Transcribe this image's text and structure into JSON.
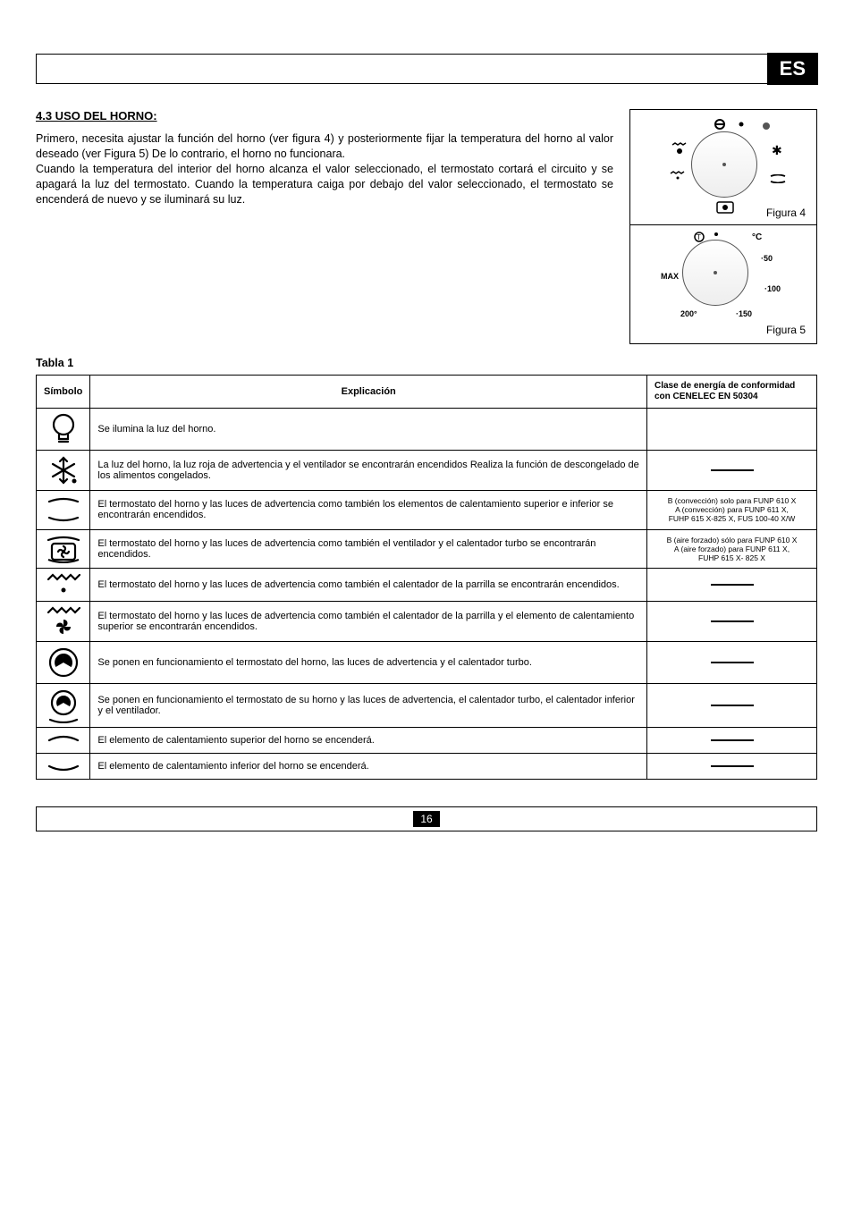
{
  "lang_badge": "ES",
  "section_title": "4.3 USO DEL HORNO:",
  "paragraph": "Primero, necesita ajustar la función del horno (ver figura 4) y posteriormente fijar la temperatura del horno al valor deseado (ver Figura 5) De lo contrario, el horno no funcionara.\nCuando la temperatura del interior del horno alcanza el valor seleccionado, el termostato cortará el circuito y se apagará la luz del termostato. Cuando la temperatura caiga por debajo del valor seleccionado, el termostato se encenderá de nuevo y se iluminará su luz.",
  "figure4_caption": "Figura  4",
  "figure5_caption": "Figura  5",
  "temp_labels": {
    "t": "°C",
    "r50": "·50",
    "r100": "·100",
    "r150": "·150",
    "l200": "200°",
    "lmax": "MAX"
  },
  "tabla_label": "Tabla 1",
  "headers": {
    "symbol": "Símbolo",
    "explanation": "Explicación",
    "class": "Clase de energía de conformidad con CENELEC EN 50304"
  },
  "rows": [
    {
      "icon": "lamp",
      "text": "Se ilumina la luz del horno.",
      "class": ""
    },
    {
      "icon": "defrost",
      "text": "La luz del horno, la luz roja de advertencia y el ventilador se encontrarán encendidos Realiza la función de descongelado de los alimentos congelados.",
      "class": "dash"
    },
    {
      "icon": "topbottom",
      "text": "El termostato del horno y las luces de advertencia como también los elementos de calentamiento superior e inferior se encontrarán encendidos.",
      "class": "B (convección) solo para FUNP 610 X\nA (convección) para FUNP 611 X,\nFUHP 615 X-825 X, FUS 100-40 X/W"
    },
    {
      "icon": "fanbox",
      "text": "El termostato del horno y las luces de advertencia como también el ventilador y el calentador turbo se encontrarán encendidos.",
      "class": "B (aire forzado) sólo para FUNP 610 X\nA (aire forzado) para FUNP 611 X,\nFUHP 615 X- 825 X"
    },
    {
      "icon": "grill",
      "text": "El termostato del horno y las luces de advertencia como también el calentador de la parrilla se encontrarán encendidos.",
      "class": "dash"
    },
    {
      "icon": "grillfan",
      "text": "El termostato del horno y las luces de advertencia como también el calentador de la parrilla y el elemento de calentamiento superior se encontrarán encendidos.",
      "class": "dash"
    },
    {
      "icon": "turbo",
      "text": "Se ponen en funcionamiento el termostato del horno, las luces de advertencia y el calentador turbo.",
      "class": "dash"
    },
    {
      "icon": "turbobottom",
      "text": "Se ponen en funcionamiento el termostato de su horno y las luces de advertencia, el calentador turbo, el calentador inferior y el ventilador.",
      "class": "dash"
    },
    {
      "icon": "top",
      "text": "El elemento de calentamiento superior del horno se encenderá.",
      "class": "dash"
    },
    {
      "icon": "bottom",
      "text": "El elemento de calentamiento inferior del horno se encenderá.",
      "class": "dash"
    }
  ],
  "page_number": "16"
}
